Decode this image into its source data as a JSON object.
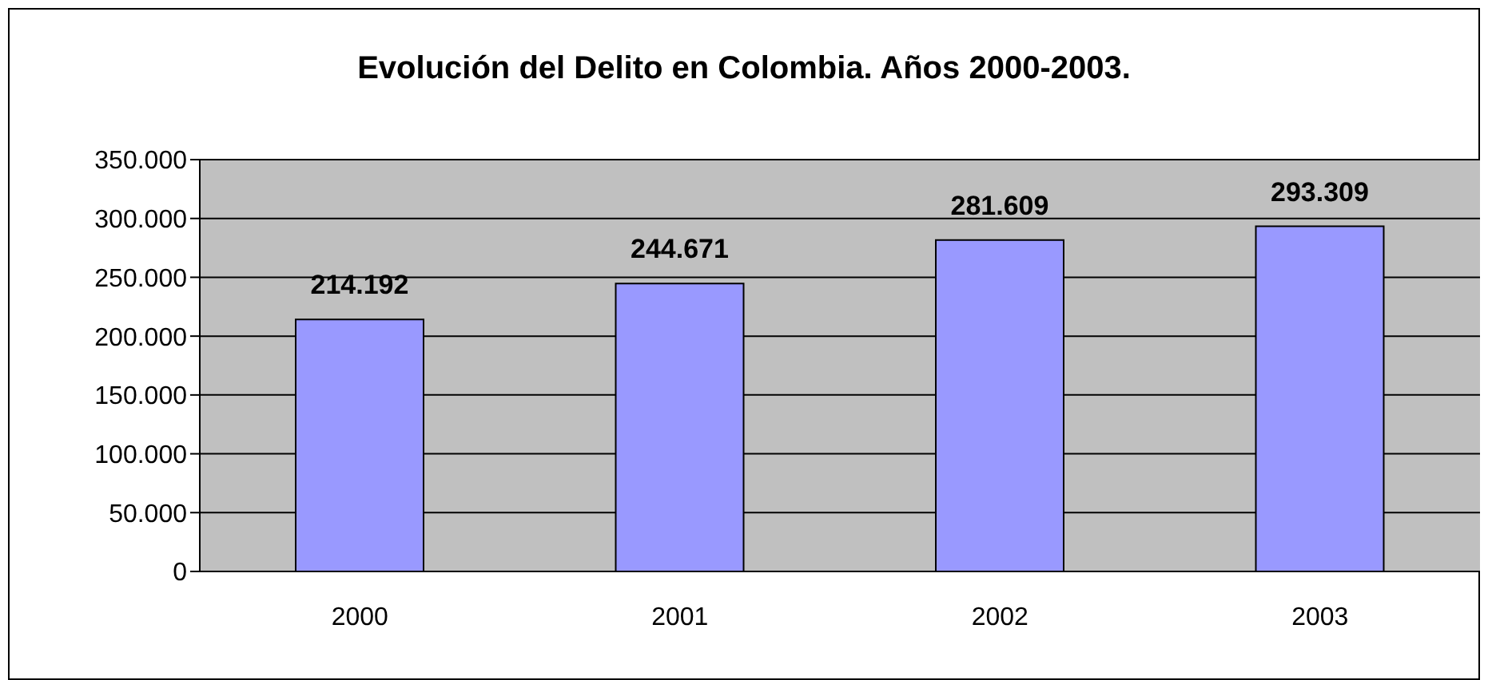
{
  "chart_data": {
    "type": "bar",
    "title": "Evolución del Delito en Colombia. Años 2000-2003.",
    "categories": [
      "2000",
      "2001",
      "2002",
      "2003"
    ],
    "values": [
      214192,
      244671,
      281609,
      293309
    ],
    "value_labels": [
      "214.192",
      "244.671",
      "281.609",
      "293.309"
    ],
    "color": "#9999ff",
    "ylim": [
      0,
      350000
    ],
    "yticks": [
      {
        "value": 0,
        "label": "0"
      },
      {
        "value": 50000,
        "label": "50.000"
      },
      {
        "value": 100000,
        "label": "100.000"
      },
      {
        "value": 150000,
        "label": "150.000"
      },
      {
        "value": 200000,
        "label": "200.000"
      },
      {
        "value": 250000,
        "label": "250.000"
      },
      {
        "value": 300000,
        "label": "300.000"
      },
      {
        "value": 350000,
        "label": "350.000"
      }
    ],
    "grid": "y",
    "legend": false
  }
}
